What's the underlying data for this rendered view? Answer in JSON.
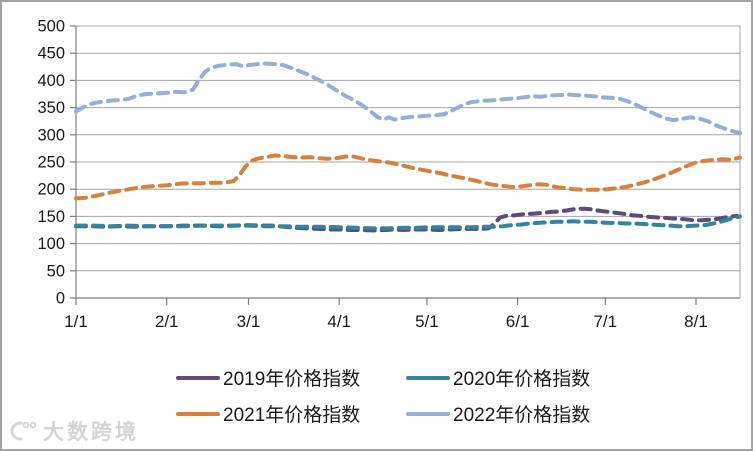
{
  "figure": {
    "watermark": {
      "text": "大数跨境"
    }
  },
  "chart_data": {
    "type": "line",
    "title": "",
    "line_style": "dashed",
    "grid": "horizontal",
    "legend_position": "bottom",
    "x_axis": {
      "tick_labels": [
        "1/1",
        "2/1",
        "3/1",
        "4/1",
        "5/1",
        "6/1",
        "7/1",
        "8/1"
      ],
      "tick_days": [
        1,
        32,
        60,
        91,
        121,
        152,
        182,
        213
      ],
      "domain_days": [
        1,
        228
      ]
    },
    "y_axis": {
      "min": 0,
      "max": 500,
      "step": 50,
      "tick_values": [
        0,
        50,
        100,
        150,
        200,
        250,
        300,
        350,
        400,
        450,
        500
      ]
    },
    "series": [
      {
        "id": "2019",
        "name": "2019年价格指数",
        "color": "#62497B",
        "points": [
          [
            1,
            132
          ],
          [
            6,
            132
          ],
          [
            11,
            131
          ],
          [
            16,
            132
          ],
          [
            21,
            131
          ],
          [
            26,
            132
          ],
          [
            32,
            132
          ],
          [
            38,
            133
          ],
          [
            44,
            133
          ],
          [
            50,
            132
          ],
          [
            55,
            133
          ],
          [
            60,
            134
          ],
          [
            64,
            133
          ],
          [
            68,
            133
          ],
          [
            72,
            131
          ],
          [
            76,
            129
          ],
          [
            80,
            128
          ],
          [
            84,
            127
          ],
          [
            88,
            126
          ],
          [
            91,
            126
          ],
          [
            95,
            125
          ],
          [
            99,
            125
          ],
          [
            103,
            124
          ],
          [
            107,
            125
          ],
          [
            110,
            126
          ],
          [
            113,
            125
          ],
          [
            117,
            126
          ],
          [
            121,
            126
          ],
          [
            125,
            125
          ],
          [
            129,
            126
          ],
          [
            133,
            127
          ],
          [
            137,
            127
          ],
          [
            140,
            127
          ],
          [
            142,
            128
          ],
          [
            144,
            136
          ],
          [
            146,
            148
          ],
          [
            148,
            151
          ],
          [
            151,
            152
          ],
          [
            154,
            154
          ],
          [
            157,
            155
          ],
          [
            160,
            156
          ],
          [
            163,
            158
          ],
          [
            166,
            159
          ],
          [
            169,
            161
          ],
          [
            171,
            163
          ],
          [
            173,
            164
          ],
          [
            175,
            164
          ],
          [
            177,
            163
          ],
          [
            179,
            161
          ],
          [
            182,
            159
          ],
          [
            185,
            157
          ],
          [
            188,
            155
          ],
          [
            191,
            152
          ],
          [
            194,
            151
          ],
          [
            197,
            149
          ],
          [
            200,
            148
          ],
          [
            203,
            147
          ],
          [
            206,
            146
          ],
          [
            209,
            145
          ],
          [
            212,
            143
          ],
          [
            215,
            143
          ],
          [
            218,
            144
          ],
          [
            221,
            146
          ],
          [
            224,
            149
          ],
          [
            227,
            151
          ]
        ]
      },
      {
        "id": "2020",
        "name": "2020年价格指数",
        "color": "#31859C",
        "points": [
          [
            1,
            133
          ],
          [
            7,
            133
          ],
          [
            13,
            132
          ],
          [
            19,
            133
          ],
          [
            25,
            132
          ],
          [
            32,
            132
          ],
          [
            38,
            132
          ],
          [
            44,
            133
          ],
          [
            50,
            133
          ],
          [
            56,
            133
          ],
          [
            60,
            133
          ],
          [
            66,
            132
          ],
          [
            72,
            132
          ],
          [
            78,
            131
          ],
          [
            84,
            131
          ],
          [
            91,
            130
          ],
          [
            97,
            129
          ],
          [
            103,
            128
          ],
          [
            108,
            128
          ],
          [
            113,
            129
          ],
          [
            118,
            129
          ],
          [
            121,
            130
          ],
          [
            126,
            130
          ],
          [
            131,
            130
          ],
          [
            136,
            130
          ],
          [
            141,
            131
          ],
          [
            144,
            131
          ],
          [
            147,
            132
          ],
          [
            150,
            134
          ],
          [
            153,
            135
          ],
          [
            156,
            137
          ],
          [
            159,
            138
          ],
          [
            162,
            139
          ],
          [
            165,
            140
          ],
          [
            168,
            140
          ],
          [
            171,
            141
          ],
          [
            174,
            140
          ],
          [
            177,
            140
          ],
          [
            180,
            139
          ],
          [
            183,
            138
          ],
          [
            186,
            138
          ],
          [
            189,
            137
          ],
          [
            192,
            137
          ],
          [
            195,
            136
          ],
          [
            198,
            135
          ],
          [
            201,
            134
          ],
          [
            204,
            133
          ],
          [
            207,
            132
          ],
          [
            210,
            132
          ],
          [
            213,
            133
          ],
          [
            216,
            134
          ],
          [
            219,
            137
          ],
          [
            222,
            141
          ],
          [
            225,
            146
          ],
          [
            228,
            150
          ]
        ]
      },
      {
        "id": "2021",
        "name": "2021年价格指数",
        "color": "#D8813F",
        "points": [
          [
            1,
            183
          ],
          [
            4,
            184
          ],
          [
            8,
            188
          ],
          [
            12,
            193
          ],
          [
            16,
            197
          ],
          [
            20,
            201
          ],
          [
            24,
            204
          ],
          [
            28,
            206
          ],
          [
            32,
            207
          ],
          [
            36,
            210
          ],
          [
            40,
            211
          ],
          [
            44,
            211
          ],
          [
            48,
            212
          ],
          [
            52,
            212
          ],
          [
            55,
            215
          ],
          [
            57,
            227
          ],
          [
            59,
            242
          ],
          [
            61,
            252
          ],
          [
            63,
            256
          ],
          [
            66,
            259
          ],
          [
            69,
            262
          ],
          [
            72,
            261
          ],
          [
            75,
            259
          ],
          [
            78,
            258
          ],
          [
            81,
            259
          ],
          [
            84,
            257
          ],
          [
            87,
            256
          ],
          [
            90,
            257
          ],
          [
            93,
            260
          ],
          [
            96,
            260
          ],
          [
            99,
            256
          ],
          [
            102,
            253
          ],
          [
            105,
            251
          ],
          [
            108,
            249
          ],
          [
            111,
            246
          ],
          [
            114,
            242
          ],
          [
            117,
            238
          ],
          [
            120,
            235
          ],
          [
            123,
            232
          ],
          [
            126,
            229
          ],
          [
            129,
            225
          ],
          [
            132,
            222
          ],
          [
            135,
            219
          ],
          [
            138,
            215
          ],
          [
            141,
            211
          ],
          [
            144,
            208
          ],
          [
            147,
            206
          ],
          [
            150,
            204
          ],
          [
            153,
            205
          ],
          [
            156,
            207
          ],
          [
            159,
            209
          ],
          [
            162,
            208
          ],
          [
            165,
            204
          ],
          [
            168,
            202
          ],
          [
            171,
            200
          ],
          [
            174,
            199
          ],
          [
            177,
            199
          ],
          [
            180,
            199
          ],
          [
            183,
            200
          ],
          [
            186,
            202
          ],
          [
            189,
            204
          ],
          [
            192,
            208
          ],
          [
            195,
            212
          ],
          [
            198,
            217
          ],
          [
            201,
            223
          ],
          [
            204,
            229
          ],
          [
            207,
            236
          ],
          [
            210,
            243
          ],
          [
            213,
            249
          ],
          [
            216,
            252
          ],
          [
            219,
            254
          ],
          [
            222,
            255
          ],
          [
            225,
            254
          ],
          [
            228,
            258
          ]
        ]
      },
      {
        "id": "2022",
        "name": "2022年价格指数",
        "color": "#95AFD6",
        "points": [
          [
            1,
            343
          ],
          [
            4,
            352
          ],
          [
            7,
            358
          ],
          [
            10,
            361
          ],
          [
            13,
            363
          ],
          [
            16,
            364
          ],
          [
            19,
            366
          ],
          [
            22,
            372
          ],
          [
            25,
            375
          ],
          [
            28,
            376
          ],
          [
            32,
            377
          ],
          [
            35,
            379
          ],
          [
            38,
            378
          ],
          [
            41,
            383
          ],
          [
            43,
            400
          ],
          [
            45,
            415
          ],
          [
            47,
            423
          ],
          [
            50,
            427
          ],
          [
            53,
            429
          ],
          [
            56,
            430
          ],
          [
            58,
            426
          ],
          [
            60,
            428
          ],
          [
            63,
            430
          ],
          [
            66,
            431
          ],
          [
            69,
            430
          ],
          [
            72,
            428
          ],
          [
            75,
            422
          ],
          [
            78,
            416
          ],
          [
            81,
            409
          ],
          [
            84,
            401
          ],
          [
            87,
            392
          ],
          [
            90,
            382
          ],
          [
            93,
            372
          ],
          [
            96,
            364
          ],
          [
            99,
            354
          ],
          [
            102,
            342
          ],
          [
            104,
            333
          ],
          [
            106,
            328
          ],
          [
            108,
            332
          ],
          [
            110,
            328
          ],
          [
            113,
            331
          ],
          [
            116,
            333
          ],
          [
            119,
            334
          ],
          [
            121,
            335
          ],
          [
            124,
            336
          ],
          [
            127,
            338
          ],
          [
            130,
            346
          ],
          [
            133,
            354
          ],
          [
            136,
            360
          ],
          [
            139,
            362
          ],
          [
            142,
            363
          ],
          [
            145,
            364
          ],
          [
            148,
            366
          ],
          [
            151,
            367
          ],
          [
            154,
            369
          ],
          [
            157,
            371
          ],
          [
            160,
            370
          ],
          [
            163,
            372
          ],
          [
            166,
            373
          ],
          [
            169,
            374
          ],
          [
            172,
            373
          ],
          [
            175,
            372
          ],
          [
            178,
            371
          ],
          [
            181,
            369
          ],
          [
            184,
            368
          ],
          [
            187,
            366
          ],
          [
            190,
            361
          ],
          [
            193,
            354
          ],
          [
            196,
            346
          ],
          [
            199,
            338
          ],
          [
            202,
            331
          ],
          [
            205,
            327
          ],
          [
            208,
            329
          ],
          [
            211,
            332
          ],
          [
            214,
            330
          ],
          [
            217,
            325
          ],
          [
            220,
            317
          ],
          [
            223,
            311
          ],
          [
            226,
            306
          ],
          [
            228,
            303
          ]
        ]
      }
    ]
  }
}
